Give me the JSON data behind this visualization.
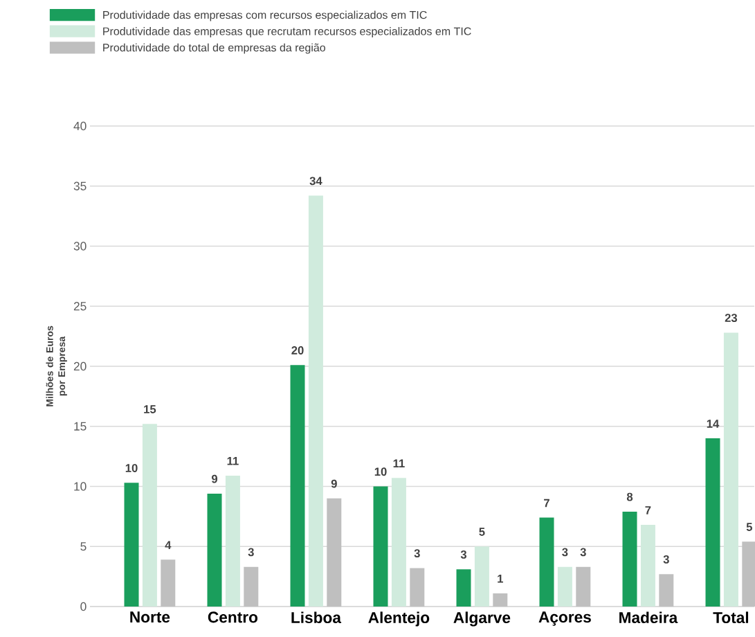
{
  "chart_data": {
    "type": "bar",
    "ylabel": "Milhões de Euros por Empresa",
    "categories": [
      "Norte",
      "Centro",
      "Lisboa",
      "Alentejo",
      "Algarve",
      "Açores",
      "Madeira",
      "Total"
    ],
    "series": [
      {
        "name": "Produtividade das empresas com recursos especializados em TIC",
        "color": "#1a9e5c",
        "values": [
          10.3,
          9.4,
          20.1,
          10.0,
          3.1,
          7.4,
          7.9,
          14.0
        ],
        "value_labels": [
          "10",
          "9",
          "20",
          "10",
          "3",
          "7",
          "8",
          "14"
        ]
      },
      {
        "name": "Produtividade das empresas que recrutam recursos especializados em TIC",
        "color": "#d0ebdd",
        "values": [
          15.2,
          10.9,
          34.2,
          10.7,
          5.0,
          3.3,
          6.8,
          22.8
        ],
        "value_labels": [
          "15",
          "11",
          "34",
          "11",
          "5",
          "3",
          "7",
          "23"
        ]
      },
      {
        "name": "Produtividade do total de empresas da região",
        "color": "#bfbfbf",
        "values": [
          3.9,
          3.3,
          9.0,
          3.2,
          1.1,
          3.3,
          2.7,
          5.4
        ],
        "value_labels": [
          "4",
          "3",
          "9",
          "3",
          "1",
          "3",
          "3",
          "5"
        ]
      }
    ],
    "ylim": [
      0,
      40
    ],
    "yticks": [
      0,
      5,
      10,
      15,
      20,
      25,
      30,
      35,
      40
    ],
    "grid": "y",
    "legend": "top left"
  }
}
